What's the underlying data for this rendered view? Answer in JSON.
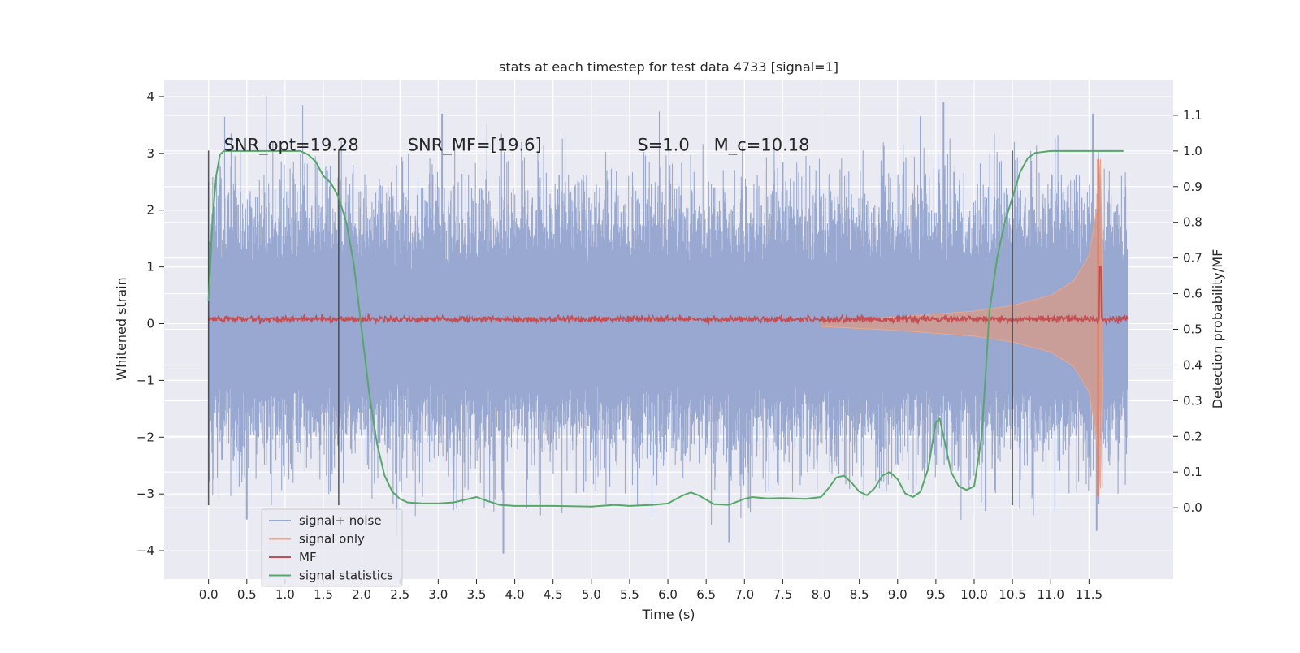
{
  "chart_data": {
    "type": "line",
    "title": "stats at each timestep for test data 4733 [signal=1]",
    "xlabel": "Time (s)",
    "ylabel": "Whitened strain",
    "ylabel_right": "Detection probability/MF",
    "xlim": [
      -0.58,
      12.6
    ],
    "ylim": [
      -4.5,
      4.3
    ],
    "ylim_right": [
      -0.2,
      1.2
    ],
    "x_ticks": [
      0.0,
      0.5,
      1.0,
      1.5,
      2.0,
      2.5,
      3.0,
      3.5,
      4.0,
      4.5,
      5.0,
      5.5,
      6.0,
      6.5,
      7.0,
      7.5,
      8.0,
      8.5,
      9.0,
      9.5,
      10.0,
      10.5,
      11.0,
      11.5
    ],
    "x_tick_labels": [
      "0.0",
      "0.5",
      "1.0",
      "1.5",
      "2.0",
      "2.5",
      "3.0",
      "3.5",
      "4.0",
      "4.5",
      "5.0",
      "5.5",
      "6.0",
      "6.5",
      "7.0",
      "7.5",
      "8.0",
      "8.5",
      "9.0",
      "9.5",
      "10.0",
      "10.5",
      "11.0",
      "11.5"
    ],
    "y_ticks": [
      -4,
      -3,
      -2,
      -1,
      0,
      1,
      2,
      3,
      4
    ],
    "y_tick_labels": [
      "−4",
      "−3",
      "−2",
      "−1",
      "0",
      "1",
      "2",
      "3",
      "4"
    ],
    "y_right_ticks": [
      0.0,
      0.1,
      0.2,
      0.3,
      0.4,
      0.5,
      0.6,
      0.7,
      0.8,
      0.9,
      1.0,
      1.1
    ],
    "y_right_tick_labels": [
      "0.0",
      "0.1",
      "0.2",
      "0.3",
      "0.4",
      "0.5",
      "0.6",
      "0.7",
      "0.8",
      "0.9",
      "1.0",
      "1.1"
    ],
    "grid": true,
    "legend_position": "lower-left",
    "legend": [
      {
        "label": "signal+ noise",
        "color": "#98A8D0"
      },
      {
        "label": "signal only",
        "color": "#E8A88E"
      },
      {
        "label": "MF",
        "color": "#C44E52"
      },
      {
        "label": "signal statistics",
        "color": "#55A868"
      }
    ],
    "annotations": [
      {
        "text": "SNR_opt=19.28",
        "x": 0.2,
        "y": 3.05
      },
      {
        "text": "SNR_MF=[19.6]",
        "x": 2.6,
        "y": 3.05
      },
      {
        "text": "S=1.0",
        "x": 5.6,
        "y": 3.05
      },
      {
        "text": "M_c=10.18",
        "x": 6.6,
        "y": 3.05
      }
    ],
    "vertical_lines_x": [
      0.0,
      1.7,
      10.5
    ],
    "vertical_lines_yrange": [
      -3.2,
      3.05
    ],
    "series": [
      {
        "name": "signal+ noise",
        "color": "#98A8D0",
        "kind": "noise-band",
        "x_range": [
          0.0,
          12.0
        ],
        "typical_peak": 2.0,
        "notable_peaks": [
          {
            "x": 0.3,
            "y": 3.35
          },
          {
            "x": 1.55,
            "y": 2.7
          },
          {
            "x": 3.05,
            "y": 3.7
          },
          {
            "x": 3.85,
            "y": -4.05
          },
          {
            "x": 7.5,
            "y": 2.85
          },
          {
            "x": 9.3,
            "y": 3.65
          },
          {
            "x": 9.6,
            "y": 3.9
          },
          {
            "x": 11.55,
            "y": 3.7
          },
          {
            "x": 11.6,
            "y": -3.65
          },
          {
            "x": 0.5,
            "y": -3.45
          },
          {
            "x": 6.8,
            "y": -3.85
          },
          {
            "x": 10.15,
            "y": -3.3
          }
        ]
      },
      {
        "name": "signal only",
        "color": "#E8A88E",
        "kind": "chirp-envelope",
        "x": [
          8.0,
          9.0,
          10.0,
          10.5,
          11.0,
          11.3,
          11.5,
          11.6,
          11.65,
          11.68
        ],
        "amplitude": [
          0.05,
          0.12,
          0.22,
          0.32,
          0.5,
          0.75,
          1.2,
          2.0,
          2.9,
          0.5
        ]
      },
      {
        "name": "MF",
        "color": "#C44E52",
        "kind": "noisy-line",
        "x_range": [
          0.0,
          12.0
        ],
        "baseline": 0.08,
        "spike": {
          "x": 11.65,
          "y": 1.0
        }
      },
      {
        "name": "signal statistics",
        "color": "#55A868",
        "axis": "right",
        "x": [
          0.0,
          0.05,
          0.1,
          0.15,
          0.2,
          0.3,
          0.5,
          0.8,
          1.0,
          1.2,
          1.3,
          1.4,
          1.5,
          1.6,
          1.7,
          1.8,
          1.9,
          2.0,
          2.1,
          2.2,
          2.3,
          2.4,
          2.5,
          2.6,
          2.8,
          3.0,
          3.2,
          3.4,
          3.5,
          3.6,
          3.8,
          4.0,
          4.5,
          5.0,
          5.3,
          5.5,
          5.8,
          6.0,
          6.2,
          6.3,
          6.4,
          6.6,
          6.8,
          7.0,
          7.1,
          7.3,
          7.5,
          7.8,
          8.0,
          8.1,
          8.2,
          8.3,
          8.4,
          8.5,
          8.6,
          8.7,
          8.8,
          8.9,
          9.0,
          9.1,
          9.2,
          9.3,
          9.4,
          9.5,
          9.55,
          9.6,
          9.7,
          9.8,
          9.9,
          10.0,
          10.1,
          10.2,
          10.3,
          10.4,
          10.5,
          10.6,
          10.7,
          10.8,
          11.0,
          11.5,
          11.95
        ],
        "y": [
          0.58,
          0.8,
          0.93,
          0.99,
          1.0,
          1.0,
          1.0,
          1.0,
          1.0,
          1.0,
          0.99,
          0.97,
          0.93,
          0.91,
          0.87,
          0.8,
          0.68,
          0.5,
          0.32,
          0.18,
          0.09,
          0.045,
          0.025,
          0.015,
          0.012,
          0.012,
          0.015,
          0.025,
          0.03,
          0.022,
          0.008,
          0.005,
          0.005,
          0.003,
          0.008,
          0.005,
          0.008,
          0.012,
          0.035,
          0.043,
          0.035,
          0.01,
          0.008,
          0.025,
          0.03,
          0.026,
          0.027,
          0.025,
          0.03,
          0.055,
          0.085,
          0.09,
          0.07,
          0.045,
          0.035,
          0.055,
          0.09,
          0.1,
          0.08,
          0.04,
          0.03,
          0.045,
          0.11,
          0.24,
          0.25,
          0.2,
          0.1,
          0.06,
          0.05,
          0.06,
          0.2,
          0.55,
          0.7,
          0.8,
          0.87,
          0.94,
          0.98,
          0.995,
          1.0,
          1.0,
          1.0
        ]
      }
    ]
  }
}
